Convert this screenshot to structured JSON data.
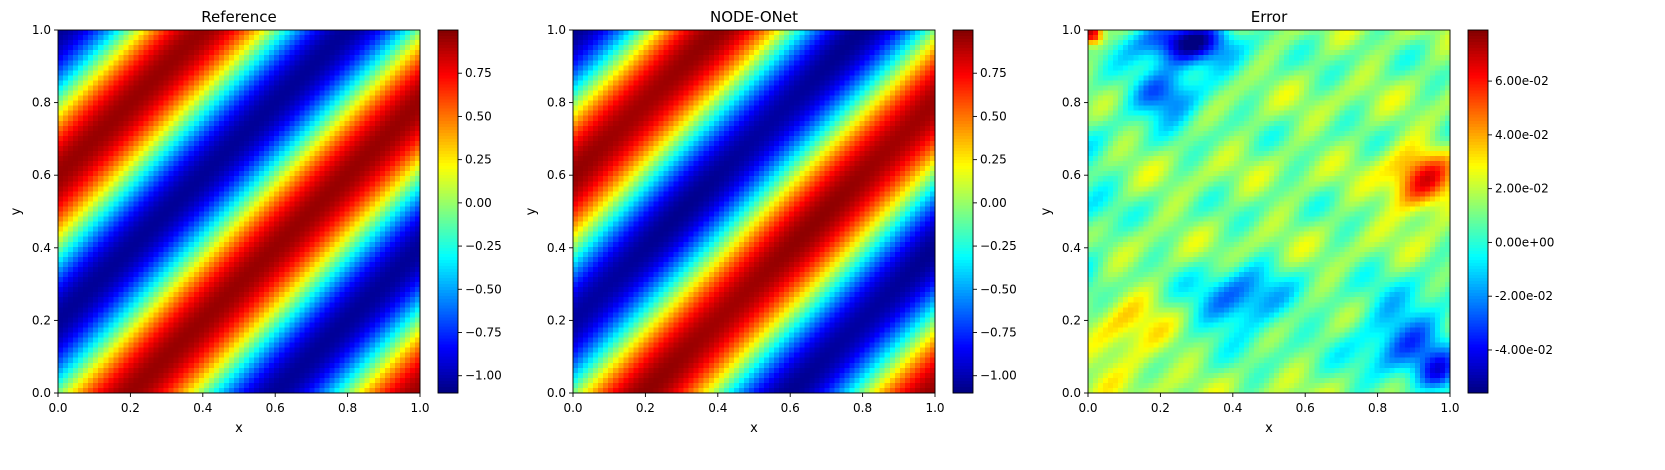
{
  "figure": {
    "panels": [
      {
        "title": "Reference",
        "xlabel": "x",
        "ylabel": "y",
        "x_ticks": [
          "0.0",
          "0.2",
          "0.4",
          "0.6",
          "0.8",
          "1.0"
        ],
        "y_ticks": [
          "0.0",
          "0.2",
          "0.4",
          "0.6",
          "0.8",
          "1.0"
        ],
        "colorbar": {
          "range": [
            -1.1,
            1.0
          ],
          "tick_values": [
            -1.0,
            -0.75,
            -0.5,
            -0.25,
            0.0,
            0.25,
            0.5,
            0.75
          ],
          "tick_labels": [
            "−1.00",
            "−0.75",
            "−0.50",
            "−0.25",
            "0.00",
            "0.25",
            "0.50",
            "0.75"
          ]
        }
      },
      {
        "title": "NODE-ONet",
        "xlabel": "x",
        "ylabel": "y",
        "x_ticks": [
          "0.0",
          "0.2",
          "0.4",
          "0.6",
          "0.8",
          "1.0"
        ],
        "y_ticks": [
          "0.0",
          "0.2",
          "0.4",
          "0.6",
          "0.8",
          "1.0"
        ],
        "colorbar": {
          "range": [
            -1.1,
            1.0
          ],
          "tick_values": [
            -1.0,
            -0.75,
            -0.5,
            -0.25,
            0.0,
            0.25,
            0.5,
            0.75
          ],
          "tick_labels": [
            "−1.00",
            "−0.75",
            "−0.50",
            "−0.25",
            "0.00",
            "0.25",
            "0.50",
            "0.75"
          ]
        }
      },
      {
        "title": "Error",
        "xlabel": "x",
        "ylabel": "y",
        "x_ticks": [
          "0.0",
          "0.2",
          "0.4",
          "0.6",
          "0.8",
          "1.0"
        ],
        "y_ticks": [
          "0.0",
          "0.2",
          "0.4",
          "0.6",
          "0.8",
          "1.0"
        ],
        "colorbar": {
          "range": [
            -0.056,
            0.079
          ],
          "tick_values": [
            -0.04,
            -0.02,
            0.0,
            0.02,
            0.04,
            0.06
          ],
          "tick_labels": [
            "-4.00e-02",
            "-2.00e-02",
            "0.00e+00",
            "2.00e-02",
            "4.00e-02",
            "6.00e-02"
          ]
        }
      }
    ]
  },
  "chart_data": [
    {
      "type": "heatmap",
      "title": "Reference",
      "xlabel": "x",
      "ylabel": "y",
      "xlim": [
        0,
        1
      ],
      "ylim": [
        0,
        1
      ],
      "colormap": "jet",
      "vmin": -1.1,
      "vmax": 1.0,
      "field": "diagonal sinusoidal bands; maxima along y ≈ x + 0.6 (n) and y ≈ x − 0.2, minima along y ≈ x + 0.2 and y ≈ x − 0.6"
    },
    {
      "type": "heatmap",
      "title": "NODE-ONet",
      "xlabel": "x",
      "ylabel": "y",
      "xlim": [
        0,
        1
      ],
      "ylim": [
        0,
        1
      ],
      "colormap": "jet",
      "vmin": -1.1,
      "vmax": 1.0,
      "field": "same as Reference"
    },
    {
      "type": "heatmap",
      "title": "Error",
      "xlabel": "x",
      "ylabel": "y",
      "xlim": [
        0,
        1
      ],
      "ylim": [
        0,
        1
      ],
      "colormap": "jet",
      "vmin": -0.056,
      "vmax": 0.079,
      "features": [
        {
          "x": 0.3,
          "y": 0.95,
          "value": -0.05
        },
        {
          "x": 0.9,
          "y": 0.58,
          "value": 0.05
        },
        {
          "x": 0.4,
          "y": 0.25,
          "value": -0.03
        },
        {
          "x": 0.92,
          "y": 0.12,
          "value": -0.05
        },
        {
          "x": 0.1,
          "y": 0.15,
          "value": 0.025
        },
        {
          "x": 0.02,
          "y": 0.98,
          "value": 0.07
        }
      ]
    }
  ]
}
